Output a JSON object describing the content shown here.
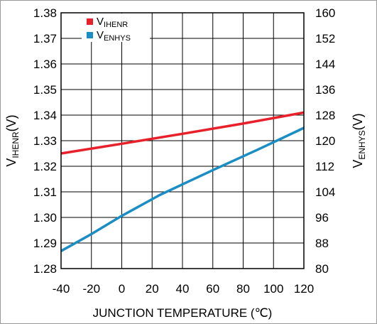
{
  "chart_data": {
    "type": "line",
    "xlabel": "JUNCTION TEMPERATURE (℃)",
    "ylabel_left": {
      "main": "V",
      "sub": "IHENR",
      "unit": "(V)"
    },
    "ylabel_right": {
      "main": "V",
      "sub": "ENHYS",
      "unit": "(V)"
    },
    "xlim": [
      -40,
      120
    ],
    "x_ticks": [
      -40,
      -20,
      0,
      20,
      40,
      60,
      80,
      100,
      120
    ],
    "ylim_left": [
      1.28,
      1.38
    ],
    "y_ticks_left": [
      "1.28",
      "1.29",
      "1.30",
      "1.31",
      "1.32",
      "1.33",
      "1.34",
      "1.35",
      "1.36",
      "1.37",
      "1.38"
    ],
    "ylim_right": [
      80,
      160
    ],
    "y_ticks_right": [
      "80",
      "88",
      "96",
      "104",
      "112",
      "120",
      "128",
      "136",
      "144",
      "152",
      "160"
    ],
    "grid": true,
    "legend_position": "top-left",
    "series": [
      {
        "name_main": "V",
        "name_sub": "IHENR",
        "axis": "left",
        "color": "#e8202a",
        "points": [
          [
            -40,
            1.325
          ],
          [
            0,
            1.3288
          ],
          [
            40,
            1.3327
          ],
          [
            80,
            1.3367
          ],
          [
            120,
            1.341
          ]
        ]
      },
      {
        "name_main": "V",
        "name_sub": "ENHYS",
        "axis": "right",
        "color": "#1a8ec4",
        "points": [
          [
            -40,
            85.5
          ],
          [
            -20,
            90.8
          ],
          [
            0,
            96.5
          ],
          [
            25,
            103.0
          ],
          [
            60,
            110.8
          ],
          [
            90,
            117.3
          ],
          [
            120,
            124.0
          ]
        ]
      }
    ]
  }
}
